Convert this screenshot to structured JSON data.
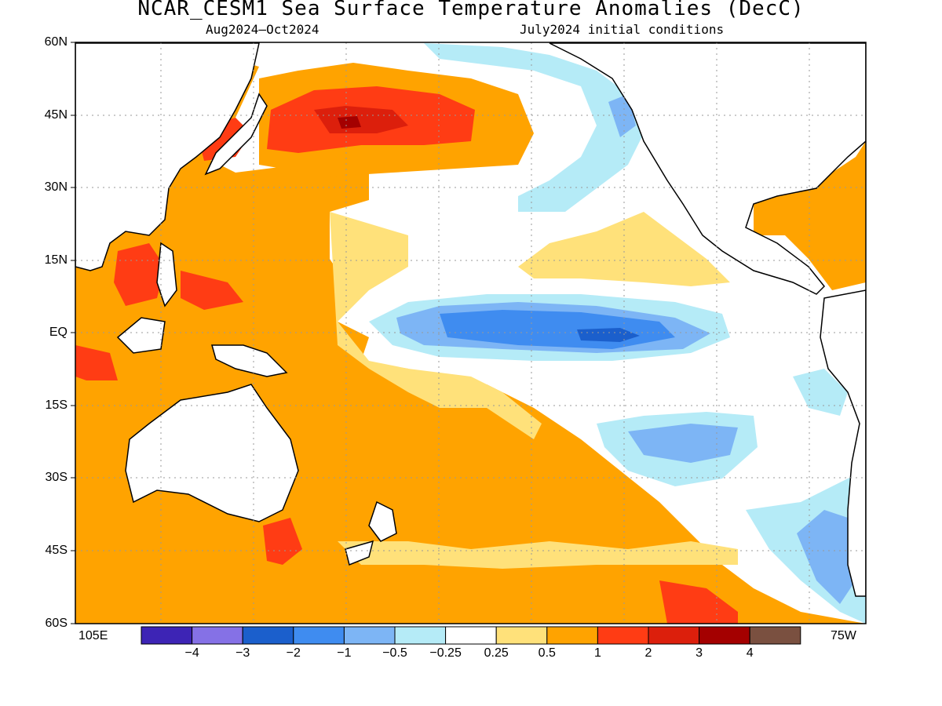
{
  "title": "NCAR_CESM1 Sea Surface Temperature Anomalies (DecC)",
  "subtitle_left": "Aug2024–Oct2024",
  "subtitle_right": "July2024 initial conditions",
  "lat_labels": [
    "60N",
    "45N",
    "30N",
    "15N",
    "EQ",
    "15S",
    "30S",
    "45S",
    "60S"
  ],
  "lon_labels": {
    "left": "105E",
    "right": "75W"
  },
  "colorbar": {
    "labels": [
      "−4",
      "−3",
      "−2",
      "−1",
      "−0.5",
      "−0.25",
      "0.25",
      "0.5",
      "1",
      "2",
      "3",
      "4"
    ],
    "colors": [
      "#3d24b5",
      "#8571e6",
      "#1b5fcc",
      "#3f8cf0",
      "#7db5f5",
      "#b5ebf7",
      "#ffffff",
      "#ffe17a",
      "#ffa300",
      "#ff3c14",
      "#dc1f0c",
      "#a40000",
      "#7a5040"
    ]
  },
  "map_colors": {
    "ocean_neutral": "#ffffff",
    "land": "#ffffff",
    "coast": "#000000",
    "grid": "#999999"
  },
  "chart_data": {
    "type": "heatmap",
    "variable": "Sea Surface Temperature Anomalies (DecC)",
    "lat_range": [
      -60,
      60
    ],
    "lon_range_labels": [
      "105E",
      "75W"
    ],
    "levels": [
      -4,
      -3,
      -2,
      -1,
      -0.5,
      -0.25,
      0.25,
      0.5,
      1,
      2,
      3,
      4
    ],
    "grid": true
  }
}
